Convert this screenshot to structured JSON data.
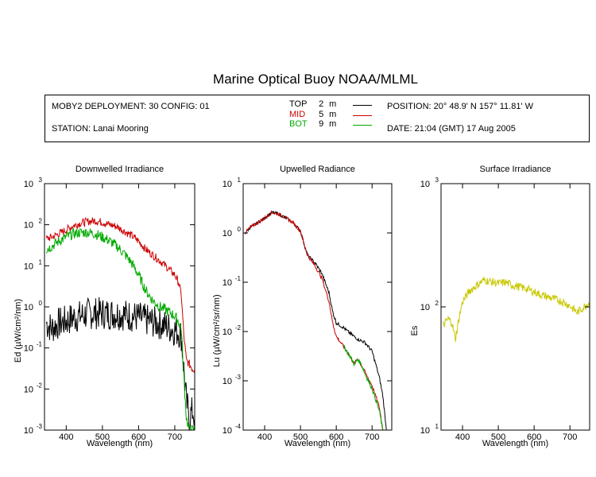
{
  "title": "Marine Optical Buoy NOAA/MLML",
  "info": {
    "deployment": "MOBY2 DEPLOYMENT: 30 CONFIG: 01",
    "station": "STATION: Lanai Mooring",
    "position": "POSITION: 20° 48.9' N   157° 11.81' W",
    "date": "DATE: 21:04 (GMT) 17 Aug 2005"
  },
  "legend": [
    {
      "name": "TOP",
      "depth": "2",
      "unit": "m",
      "color": "#000000"
    },
    {
      "name": "MID",
      "depth": "5",
      "unit": "m",
      "color": "#cc0000"
    },
    {
      "name": "BOT",
      "depth": "9",
      "unit": "m",
      "color": "#00aa00"
    }
  ],
  "chart_data": [
    {
      "type": "line",
      "title": "Downwelled Irradiance",
      "xlabel": "Wavelength (nm)",
      "ylabel": "Ed  (µW/cm²/nm)",
      "xlim": [
        340,
        755
      ],
      "ylim": [
        0.001,
        1000
      ],
      "yscale": "log",
      "xticks": [
        "400",
        "500",
        "600",
        "700"
      ],
      "ytick_exponents": [
        "-3",
        "-2",
        "-1",
        "0",
        "1",
        "2",
        "3"
      ],
      "series": [
        {
          "name": "TOP",
          "color": "#000000",
          "noise": 2.5,
          "x": [
            345,
            360,
            380,
            400,
            420,
            440,
            460,
            480,
            500,
            520,
            540,
            560,
            580,
            600,
            620,
            640,
            660,
            680,
            700,
            710,
            718,
            725,
            732,
            740,
            750,
            755
          ],
          "y": [
            0.4,
            0.3,
            0.4,
            0.45,
            0.55,
            0.6,
            0.68,
            0.7,
            0.7,
            0.68,
            0.68,
            0.65,
            0.6,
            0.55,
            0.48,
            0.43,
            0.39,
            0.33,
            0.27,
            0.25,
            0.2,
            0.03,
            0.005,
            0.002,
            0.003,
            0.002
          ]
        },
        {
          "name": "MID",
          "color": "#cc0000",
          "noise": 1.25,
          "x": [
            345,
            360,
            380,
            400,
            420,
            440,
            460,
            480,
            500,
            520,
            540,
            560,
            580,
            600,
            620,
            640,
            660,
            680,
            700,
            710,
            718,
            725,
            732,
            740,
            750,
            755
          ],
          "y": [
            45,
            50,
            60,
            75,
            95,
            110,
            120,
            125,
            115,
            100,
            90,
            70,
            55,
            40,
            25,
            18,
            13,
            9,
            6,
            4,
            2,
            0.2,
            0.05,
            0.04,
            0.03,
            0.03
          ]
        },
        {
          "name": "BOT",
          "color": "#00aa00",
          "noise": 1.35,
          "x": [
            345,
            360,
            380,
            400,
            420,
            440,
            460,
            480,
            500,
            520,
            540,
            560,
            580,
            600,
            620,
            640,
            660,
            680,
            700,
            710,
            718,
            725,
            732,
            740,
            750,
            755
          ],
          "y": [
            25,
            30,
            40,
            50,
            60,
            65,
            65,
            60,
            50,
            40,
            30,
            20,
            12,
            6,
            2.5,
            1.4,
            1.0,
            0.8,
            0.6,
            0.45,
            0.3,
            0.02,
            0.002,
            0.001,
            0.001,
            0.001
          ]
        }
      ]
    },
    {
      "type": "line",
      "title": "Upwelled Radiance",
      "xlabel": "Wavelength (nm)",
      "ylabel": "Lu  (µW/cm²/sr/nm)",
      "xlim": [
        340,
        755
      ],
      "ylim": [
        0.0001,
        10
      ],
      "yscale": "log",
      "xticks": [
        "400",
        "500",
        "600",
        "700"
      ],
      "ytick_exponents": [
        "-4",
        "-3",
        "-2",
        "-1",
        "0",
        "1"
      ],
      "series": [
        {
          "name": "TOP",
          "color": "#000000",
          "noise": 1.08,
          "x": [
            345,
            360,
            380,
            400,
            420,
            440,
            460,
            480,
            500,
            510,
            520,
            540,
            560,
            580,
            590,
            600,
            620,
            640,
            660,
            680,
            700,
            720,
            730,
            740
          ],
          "y": [
            1.0,
            1.3,
            1.6,
            2.0,
            2.6,
            2.4,
            2.0,
            1.6,
            1.1,
            0.6,
            0.35,
            0.25,
            0.15,
            0.06,
            0.025,
            0.015,
            0.012,
            0.009,
            0.007,
            0.006,
            0.004,
            0.0012,
            0.0005,
            0.0001
          ]
        },
        {
          "name": "MID",
          "color": "#cc0000",
          "noise": 1.08,
          "x": [
            345,
            360,
            380,
            400,
            420,
            440,
            460,
            480,
            500,
            510,
            520,
            540,
            560,
            580,
            590,
            600,
            620,
            640,
            650,
            660,
            680,
            700,
            720,
            730,
            740
          ],
          "y": [
            1.0,
            1.3,
            1.6,
            2.0,
            2.6,
            2.4,
            2.0,
            1.6,
            1.1,
            0.6,
            0.35,
            0.22,
            0.12,
            0.04,
            0.015,
            0.008,
            0.005,
            0.003,
            0.0022,
            0.0028,
            0.0015,
            0.0008,
            0.0003,
            0.0001,
            5e-05
          ]
        },
        {
          "name": "BOT",
          "color": "#00aa00",
          "noise": 1.1,
          "x": [
            620,
            630,
            640,
            650,
            660,
            670,
            680,
            700,
            720,
            730,
            740
          ],
          "y": [
            0.005,
            0.004,
            0.003,
            0.0022,
            0.0027,
            0.0022,
            0.0014,
            0.0007,
            0.00025,
            0.0001,
            5e-05
          ]
        }
      ]
    },
    {
      "type": "line",
      "title": "Surface Irradiance",
      "xlabel": "Wavelength (nm)",
      "ylabel": "Es",
      "xlim": [
        340,
        755
      ],
      "ylim": [
        10,
        1000
      ],
      "yscale": "log",
      "xticks": [
        "400",
        "500",
        "600",
        "700"
      ],
      "ytick_exponents": [
        "1",
        "2",
        "3"
      ],
      "series": [
        {
          "name": "Es",
          "color": "#c8c800",
          "noise": 1.08,
          "x": [
            345,
            360,
            370,
            380,
            390,
            400,
            420,
            440,
            460,
            480,
            500,
            520,
            540,
            560,
            580,
            600,
            620,
            640,
            660,
            680,
            700,
            720,
            740,
            755
          ],
          "y": [
            70,
            80,
            75,
            55,
            80,
            110,
            135,
            150,
            165,
            160,
            155,
            158,
            150,
            145,
            140,
            132,
            125,
            120,
            115,
            110,
            102,
            90,
            100,
            110
          ]
        }
      ]
    }
  ]
}
